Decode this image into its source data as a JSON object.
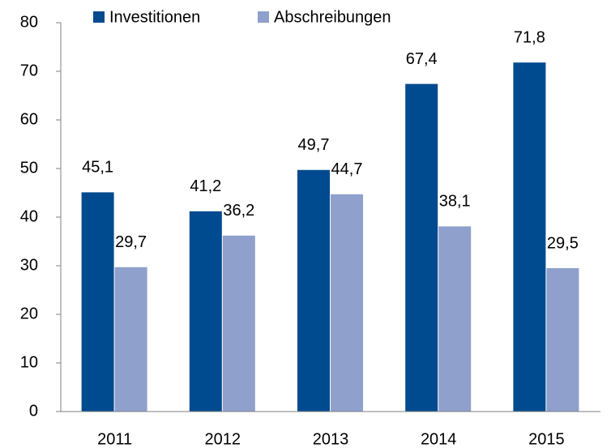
{
  "chart_data": {
    "type": "bar",
    "categories": [
      "2011",
      "2012",
      "2013",
      "2014",
      "2015"
    ],
    "series": [
      {
        "name": "Investitionen",
        "color": "#004a8f",
        "values": [
          45.1,
          41.2,
          49.7,
          67.4,
          71.8
        ],
        "value_labels": [
          "45,1",
          "41,2",
          "49,7",
          "67,4",
          "71,8"
        ]
      },
      {
        "name": "Abschreibungen",
        "color": "#8fa0cc",
        "values": [
          29.7,
          36.2,
          44.7,
          38.1,
          29.5
        ],
        "value_labels": [
          "29,7",
          "36,2",
          "44,7",
          "38,1",
          "29,5"
        ]
      }
    ],
    "ylim": [
      0,
      80
    ],
    "yticks": [
      0,
      10,
      20,
      30,
      40,
      50,
      60,
      70,
      80
    ],
    "grid": false,
    "legend": "top"
  }
}
